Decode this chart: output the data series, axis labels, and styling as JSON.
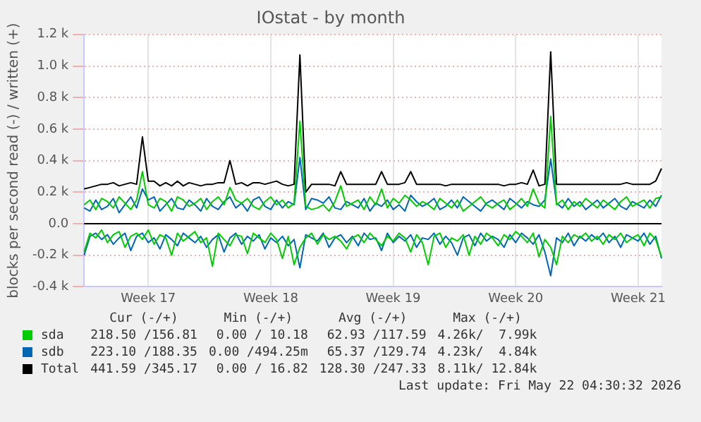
{
  "chart_data": {
    "type": "line",
    "title": "IOstat - by month",
    "ylabel": "blocks per second read (-) / written (+)",
    "categories": [
      null,
      null,
      null,
      null,
      null,
      null,
      null,
      null,
      null,
      null,
      null,
      "Week 17",
      null,
      null,
      null,
      null,
      null,
      null,
      null,
      null,
      null,
      null,
      null,
      null,
      null,
      null,
      null,
      null,
      null,
      null,
      null,
      null,
      "Week 18",
      null,
      null,
      null,
      null,
      null,
      null,
      null,
      null,
      null,
      null,
      null,
      null,
      null,
      null,
      null,
      null,
      null,
      null,
      null,
      null,
      "Week 19",
      null,
      null,
      null,
      null,
      null,
      null,
      null,
      null,
      null,
      null,
      null,
      null,
      null,
      null,
      null,
      null,
      null,
      null,
      null,
      null,
      "Week 20",
      null,
      null,
      null,
      null,
      null,
      null,
      null,
      null,
      null,
      null,
      null,
      null,
      null,
      null,
      null,
      null,
      null,
      null,
      null,
      null,
      "Week 21",
      null,
      null,
      null,
      null
    ],
    "series": [
      {
        "name": "sda",
        "color": "#00cc00",
        "values": [
          120,
          150,
          90,
          160,
          140,
          100,
          170,
          130,
          90,
          150,
          330,
          120,
          100,
          160,
          140,
          80,
          170,
          150,
          110,
          130,
          160,
          90,
          140,
          170,
          120,
          230,
          150,
          130,
          160,
          110,
          90,
          140,
          170,
          120,
          150,
          100,
          130,
          650,
          110,
          90,
          100,
          120,
          80,
          140,
          240,
          110,
          130,
          150,
          90,
          170,
          120,
          220,
          100,
          160,
          130,
          180,
          150,
          110,
          140,
          120,
          90,
          160,
          130,
          100,
          150,
          80,
          110,
          140,
          170,
          120,
          100,
          130,
          150,
          90,
          120,
          160,
          110,
          220,
          130,
          100,
          680,
          120,
          150,
          90,
          140,
          110,
          160,
          130,
          100,
          150,
          120,
          90,
          140,
          170,
          110,
          130,
          150,
          100,
          160,
          170
        ]
      },
      {
        "name": "sdb",
        "color": "#0066b3",
        "values": [
          100,
          80,
          150,
          90,
          110,
          160,
          70,
          120,
          170,
          100,
          220,
          150,
          170,
          80,
          120,
          160,
          100,
          90,
          150,
          120,
          80,
          160,
          110,
          90,
          140,
          170,
          100,
          130,
          80,
          150,
          170,
          110,
          90,
          150,
          100,
          140,
          120,
          420,
          90,
          160,
          150,
          130,
          170,
          100,
          90,
          140,
          120,
          100,
          160,
          80,
          130,
          110,
          150,
          90,
          120,
          80,
          180,
          140,
          110,
          130,
          160,
          90,
          110,
          150,
          100,
          170,
          140,
          110,
          80,
          130,
          150,
          120,
          90,
          160,
          130,
          100,
          140,
          120,
          110,
          150,
          410,
          130,
          100,
          160,
          110,
          140,
          90,
          120,
          150,
          100,
          130,
          160,
          110,
          90,
          140,
          120,
          100,
          150,
          110,
          180
        ]
      },
      {
        "name": "Total",
        "color": "#000000",
        "values": [
          220,
          230,
          240,
          250,
          250,
          260,
          240,
          250,
          260,
          250,
          550,
          270,
          270,
          240,
          260,
          240,
          270,
          240,
          260,
          250,
          240,
          250,
          250,
          260,
          260,
          400,
          250,
          260,
          240,
          260,
          260,
          250,
          260,
          270,
          250,
          240,
          250,
          1070,
          200,
          250,
          250,
          250,
          250,
          240,
          330,
          250,
          250,
          250,
          250,
          250,
          250,
          330,
          250,
          250,
          250,
          260,
          330,
          250,
          250,
          250,
          250,
          250,
          240,
          250,
          250,
          250,
          250,
          250,
          250,
          250,
          250,
          250,
          240,
          250,
          250,
          260,
          250,
          340,
          240,
          250,
          1090,
          250,
          250,
          250,
          250,
          250,
          250,
          250,
          250,
          250,
          250,
          250,
          250,
          260,
          250,
          250,
          250,
          250,
          270,
          350
        ]
      },
      {
        "color": "#00cc00",
        "values": [
          -180,
          -60,
          -90,
          -40,
          -120,
          -70,
          -50,
          -150,
          -80,
          -60,
          -100,
          -40,
          -130,
          -70,
          -90,
          -200,
          -60,
          -110,
          -80,
          -50,
          -120,
          -90,
          -270,
          -60,
          -100,
          -140,
          -70,
          -80,
          -190,
          -60,
          -90,
          -120,
          -60,
          -100,
          -220,
          -80,
          -260,
          -150,
          -90,
          -60,
          -130,
          -70,
          -100,
          -80,
          -110,
          -160,
          -90,
          -70,
          -120,
          -60,
          -100,
          -140,
          -80,
          -110,
          -60,
          -90,
          -180,
          -70,
          -120,
          -260,
          -80,
          -60,
          -150,
          -90,
          -110,
          -70,
          -200,
          -80,
          -130,
          -60,
          -90,
          -140,
          -70,
          -100,
          -50,
          -80,
          -120,
          -60,
          -210,
          -100,
          -150,
          -260,
          -80,
          -120,
          -70,
          -90,
          -60,
          -110,
          -80,
          -130,
          -70,
          -100,
          -60,
          -120,
          -90,
          -70,
          -140,
          -60,
          -100,
          -210
        ]
      },
      {
        "color": "#0066b3",
        "values": [
          -200,
          -80,
          -60,
          -100,
          -70,
          -130,
          -90,
          -60,
          -170,
          -80,
          -60,
          -120,
          -90,
          -160,
          -70,
          -100,
          -140,
          -60,
          -90,
          -120,
          -80,
          -150,
          -100,
          -70,
          -180,
          -90,
          -60,
          -130,
          -80,
          -110,
          -70,
          -160,
          -90,
          -120,
          -80,
          -140,
          -100,
          -280,
          -70,
          -90,
          -110,
          -60,
          -150,
          -90,
          -70,
          -120,
          -80,
          -140,
          -60,
          -100,
          -90,
          -170,
          -60,
          -120,
          -80,
          -110,
          -70,
          -150,
          -90,
          -100,
          -60,
          -130,
          -80,
          -120,
          -200,
          -90,
          -70,
          -140,
          -60,
          -110,
          -80,
          -100,
          -150,
          -70,
          -120,
          -60,
          -90,
          -130,
          -70,
          -180,
          -330,
          -90,
          -120,
          -60,
          -140,
          -80,
          -110,
          -70,
          -100,
          -60,
          -120,
          -80,
          -150,
          -70,
          -90,
          -110,
          -60,
          -130,
          -80,
          -220
        ]
      }
    ],
    "ylim": [
      -400,
      1200
    ],
    "yticks": [
      {
        "value": -400,
        "label": "-0.4 k"
      },
      {
        "value": -200,
        "label": "-0.2 k"
      },
      {
        "value": 0,
        "label": "0.0"
      },
      {
        "value": 200,
        "label": "0.2 k"
      },
      {
        "value": 400,
        "label": "0.4 k"
      },
      {
        "value": 600,
        "label": "0.6 k"
      },
      {
        "value": 800,
        "label": "0.8 k"
      },
      {
        "value": 1000,
        "label": "1.0 k"
      },
      {
        "value": 1200,
        "label": "1.2 k"
      }
    ],
    "grid": true,
    "legend": "bottom",
    "ref_lines": [
      {
        "axis": "y",
        "value": 0,
        "color": "#000000"
      }
    ],
    "annotations": [
      "Cur (-/+)",
      "Min (-/+)",
      "Avg (-/+)",
      "Max (-/+)",
      "218.50 /156.81",
      "0.00 / 10.18",
      "62.93 /117.59",
      "4.26k/  7.99k",
      "223.10 /188.35",
      "0.00 /494.25m",
      "65.37 /129.74",
      "4.23k/  4.84k",
      "441.59 /345.17",
      "0.00 / 16.82",
      "128.30 /247.33",
      "8.11k/ 12.84k",
      "Last update: Fri May 22 04:30:32 2026"
    ]
  }
}
